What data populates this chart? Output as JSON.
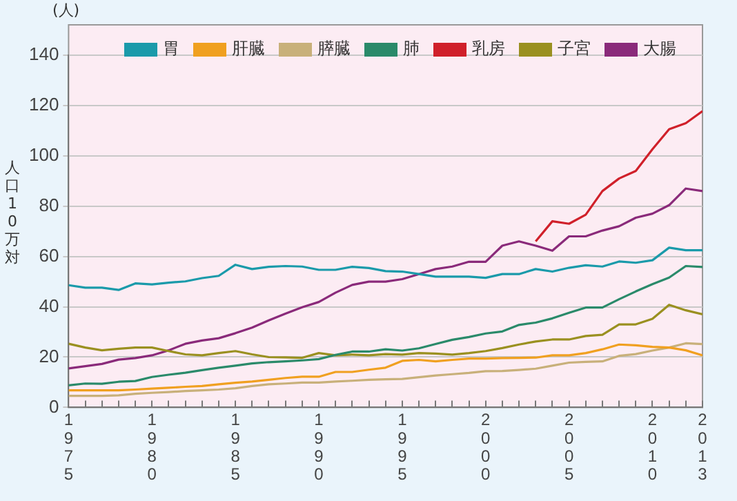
{
  "chart_data": {
    "type": "line",
    "ylabel": "人口10万対",
    "annotations": [
      "(人)"
    ],
    "x": [
      1975,
      1976,
      1977,
      1978,
      1979,
      1980,
      1981,
      1982,
      1983,
      1984,
      1985,
      1986,
      1987,
      1988,
      1989,
      1990,
      1991,
      1992,
      1993,
      1994,
      1995,
      1996,
      1997,
      1998,
      1999,
      2000,
      2001,
      2002,
      2003,
      2004,
      2005,
      2006,
      2007,
      2008,
      2009,
      2010,
      2011,
      2012,
      2013
    ],
    "xlim": [
      1975,
      2013
    ],
    "xticks": [
      1975,
      {
        "value": 1976,
        "label": null
      },
      {
        "value": 1977,
        "label": null
      },
      {
        "value": 1978,
        "label": null
      },
      {
        "value": 1979,
        "label": null
      },
      1980,
      {
        "value": 1981,
        "label": null
      },
      {
        "value": 1982,
        "label": null
      },
      {
        "value": 1983,
        "label": null
      },
      {
        "value": 1984,
        "label": null
      },
      1985,
      {
        "value": 1986,
        "label": null
      },
      {
        "value": 1987,
        "label": null
      },
      {
        "value": 1988,
        "label": null
      },
      {
        "value": 1989,
        "label": null
      },
      1990,
      {
        "value": 1991,
        "label": null
      },
      {
        "value": 1992,
        "label": null
      },
      {
        "value": 1993,
        "label": null
      },
      {
        "value": 1994,
        "label": null
      },
      1995,
      {
        "value": 1996,
        "label": null
      },
      {
        "value": 1997,
        "label": null
      },
      {
        "value": 1998,
        "label": null
      },
      {
        "value": 1999,
        "label": null
      },
      2000,
      {
        "value": 2001,
        "label": null
      },
      {
        "value": 2002,
        "label": null
      },
      {
        "value": 2003,
        "label": null
      },
      {
        "value": 2004,
        "label": null
      },
      2005,
      {
        "value": 2006,
        "label": null
      },
      {
        "value": 2007,
        "label": null
      },
      {
        "value": 2008,
        "label": null
      },
      {
        "value": 2009,
        "label": null
      },
      2010,
      {
        "value": 2011,
        "label": null
      },
      {
        "value": 2012,
        "label": null
      },
      2013
    ],
    "ylim": [
      0,
      140
    ],
    "yticks": [
      0,
      20,
      40,
      60,
      80,
      100,
      120,
      140
    ],
    "grid": "y",
    "legend": "top",
    "marker": "none",
    "line_style": "solid",
    "series": [
      {
        "name": "胃",
        "color": "#1a9aaa",
        "values": [
          48.6,
          47.6,
          47.6,
          46.7,
          49.3,
          48.9,
          49.6,
          50.1,
          51.4,
          52.3,
          56.7,
          55,
          55.9,
          56.2,
          56,
          54.7,
          54.7,
          55.9,
          55.4,
          54.2,
          54,
          53,
          52,
          52,
          52,
          51.5,
          53,
          53,
          55,
          54,
          55.5,
          56.5,
          56,
          58,
          57.5,
          58.5,
          63.5,
          62.5,
          62.5
        ]
      },
      {
        "name": "肝臓",
        "color": "#f0a020",
        "values": [
          6.8,
          6.8,
          6.8,
          6.8,
          7.1,
          7.5,
          7.8,
          8.2,
          8.5,
          9.2,
          9.8,
          10.3,
          11,
          11.7,
          12.2,
          12.2,
          14.1,
          14.1,
          15,
          15.8,
          18.5,
          18.9,
          18.3,
          18.9,
          19.4,
          19.4,
          19.6,
          19.7,
          19.8,
          20.7,
          20.7,
          21.6,
          23.1,
          25,
          24.7,
          24.1,
          23.8,
          22.7,
          20.7
        ]
      },
      {
        "name": "膵臓",
        "color": "#c8b07a",
        "values": [
          4.6,
          4.6,
          4.6,
          4.8,
          5.4,
          5.8,
          6.1,
          6.5,
          6.8,
          7.1,
          7.6,
          8.5,
          9.2,
          9.5,
          9.9,
          9.9,
          10.3,
          10.6,
          11,
          11.2,
          11.3,
          12,
          12.7,
          13.2,
          13.7,
          14.4,
          14.5,
          14.9,
          15.4,
          16.6,
          17.8,
          18.1,
          18.3,
          20.5,
          21.2,
          22.6,
          23.8,
          25.5,
          25.2
        ]
      },
      {
        "name": "肺",
        "color": "#2a8a6a",
        "values": [
          8.8,
          9.5,
          9.4,
          10.2,
          10.5,
          12.1,
          13,
          13.8,
          14.8,
          15.8,
          16.6,
          17.5,
          18,
          18.3,
          18.7,
          19.2,
          20.9,
          22.2,
          22.2,
          23.1,
          22.6,
          23.5,
          25.2,
          26.9,
          28,
          29.4,
          30.2,
          32.8,
          33.7,
          35.4,
          37.6,
          39.7,
          39.7,
          43,
          46.1,
          49,
          51.6,
          56.2,
          55.8
        ]
      },
      {
        "name": "乳房",
        "color": "#d0202a",
        "values": [
          null,
          null,
          null,
          null,
          null,
          null,
          null,
          null,
          null,
          null,
          null,
          null,
          null,
          null,
          null,
          null,
          null,
          null,
          null,
          null,
          null,
          null,
          null,
          null,
          null,
          null,
          null,
          null,
          66,
          74,
          73,
          76.6,
          86,
          91,
          94,
          102.6,
          110.6,
          113,
          117.8
        ]
      },
      {
        "name": "子宮",
        "color": "#9a9020",
        "values": [
          25.3,
          23.8,
          22.7,
          23.3,
          23.8,
          23.8,
          22.4,
          21.1,
          20.7,
          21.6,
          22.4,
          21.1,
          20,
          19.9,
          19.7,
          21.6,
          20.7,
          21,
          20.7,
          21.2,
          21,
          21.6,
          21.4,
          21,
          21.6,
          22.4,
          23.6,
          25,
          26.2,
          27,
          27,
          28.4,
          28.9,
          33,
          33,
          35.2,
          40.8,
          38.6,
          37
        ]
      },
      {
        "name": "大腸",
        "color": "#8a2a7a",
        "values": [
          15.5,
          16.4,
          17.3,
          19,
          19.6,
          20.7,
          22.7,
          25.3,
          26.6,
          27.5,
          29.5,
          31.7,
          34.6,
          37.3,
          39.8,
          41.9,
          45.6,
          48.7,
          50,
          50,
          51,
          53,
          55,
          56,
          57.9,
          57.9,
          64.3,
          66,
          64.3,
          62.3,
          68,
          68,
          70.3,
          72,
          75.4,
          77,
          80.4,
          87,
          86
        ]
      }
    ]
  }
}
